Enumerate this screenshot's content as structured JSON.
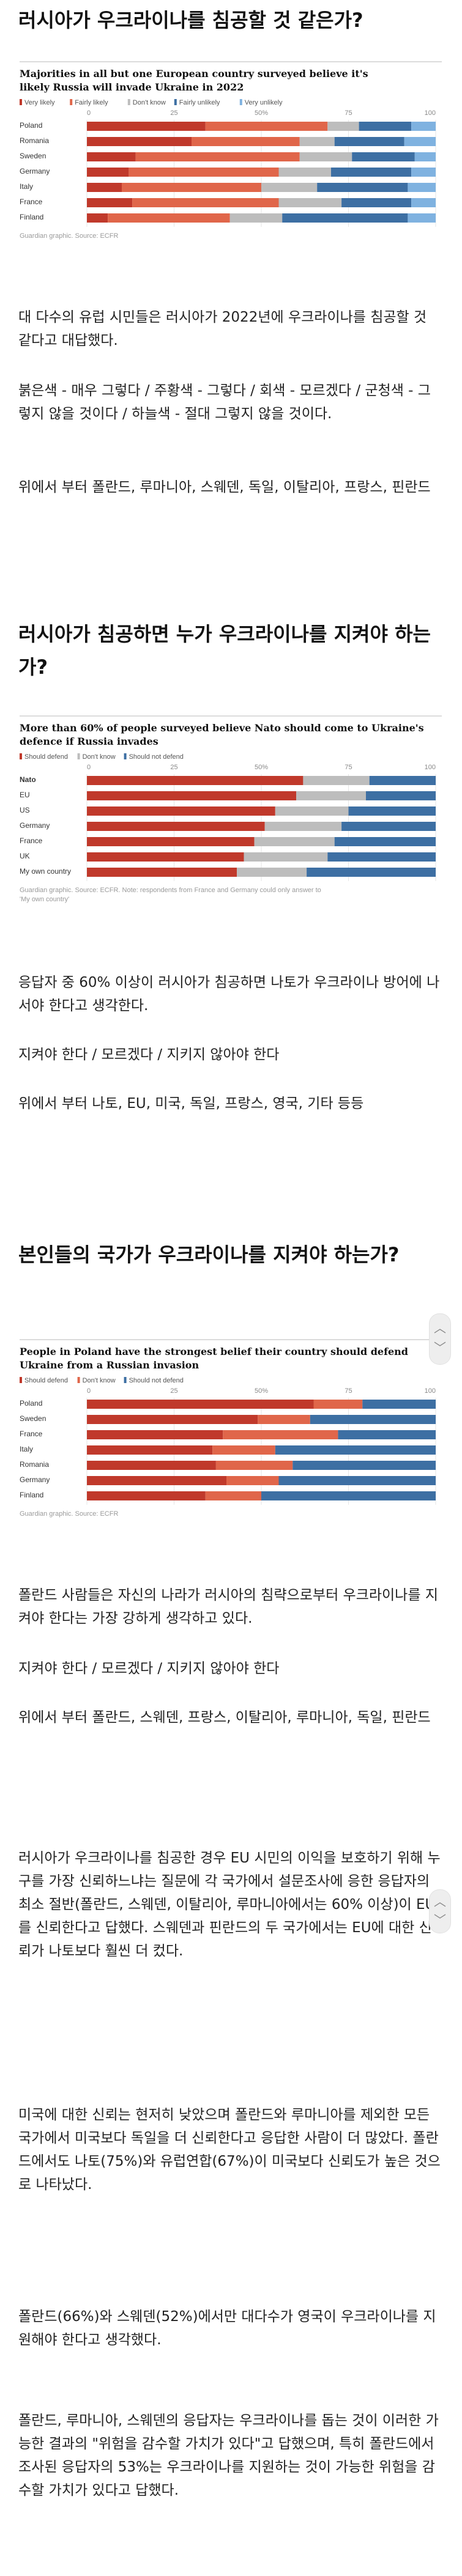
{
  "sections": [
    {
      "heading": "러시아가 우크라이나를 침공할 것 같은가?",
      "paragraphs": [
        "대 다수의 유럽 시민들은 러시아가 2022년에 우크라이나를 침공할 것 같다고 대답했다.",
        "붉은색 - 매우 그렇다 / 주황색 - 그렇다 / 회색 - 모르겠다 / 군청색 - 그렇지 않을 것이다 / 하늘색 - 절대 그렇지 않을 것이다.",
        "위에서 부터 폴란드, 루마니아, 스웨덴, 독일, 이탈리아, 프랑스, 핀란드"
      ]
    },
    {
      "heading": "러시아가 침공하면 누가 우크라이나를 지켜야 하는가?",
      "paragraphs": [
        "응답자 중 60% 이상이 러시아가 침공하면 나토가 우크라이나 방어에 나서야 한다고 생각한다.",
        "지켜야 한다 / 모르겠다 / 지키지 않아야 한다",
        "위에서 부터 나토, EU, 미국, 독일, 프랑스, 영국, 기타 등등"
      ]
    },
    {
      "heading": "본인들의 국가가 우크라이나를 지켜야 하는가?",
      "paragraphs": [
        "폴란드 사람들은 자신의 나라가 러시아의 침략으로부터 우크라이나를 지켜야 한다는 가장 강하게 생각하고 있다.",
        "지켜야 한다 / 모르겠다 / 지키지 않아야 한다",
        "위에서 부터 폴란드, 스웨덴, 프랑스, 이탈리아, 루마니아, 독일, 핀란드"
      ]
    }
  ],
  "closing_paragraphs": [
    "러시아가 우크라이나를 침공한 경우 EU 시민의 이익을 보호하기 위해 누구를 가장 신뢰하느냐는 질문에 각 국가에서 설문조사에 응한 응답자의 최소 절반(폴란드, 스웨덴, 이탈리아, 루마니아에서는 60% 이상)이 EU를 신뢰한다고 답했다. 스웨덴과 핀란드의 두 국가에서는 EU에 대한 신뢰가 나토보다 훨씬 더 컸다.",
    "미국에 대한 신뢰는 현저히 낮았으며 폴란드와 루마니아를 제외한 모든 국가에서 미국보다 독일을 더 신뢰한다고 응답한 사람이 더 많았다. 폴란드에서도 나토(75%)와 유럽연합(67%)이 미국보다 신뢰도가 높은 것으로 나타났다.",
    "폴란드(66%)와 스웨덴(52%)에서만 대다수가 영국이 우크라이나를 지원해야 한다고 생각했다.",
    "폴란드, 루마니아, 스웨덴의 응답자는 우크라이나를 돕는 것이 이러한 가능한 결과의 \"위험을 감수할 가치가 있다\"고 답했으며, 특히 폴란드에서 조사된 응답자의 53%는 우크라이나를 지원하는 것이 가능한 위험을 감수할 가치가 있다고 답했다."
  ],
  "scroll_control": {
    "up_icon": "chevron-up-icon",
    "down_icon": "chevron-down-icon"
  },
  "chart_data": [
    {
      "type": "bar",
      "stacked": true,
      "orientation": "horizontal",
      "title": "Majorities in all but one European country surveyed believe it's likely Russia will invade Ukraine in 2022",
      "xlim": [
        0,
        100
      ],
      "ticks": [
        "0",
        "25",
        "50%",
        "75",
        "100"
      ],
      "categories": [
        "Poland",
        "Romania",
        "Sweden",
        "Germany",
        "Italy",
        "France",
        "Finland"
      ],
      "series": [
        {
          "name": "Very likely",
          "color": "#c0392b",
          "values": [
            34,
            30,
            14,
            12,
            10,
            13,
            6
          ]
        },
        {
          "name": "Fairly likely",
          "color": "#e0664a",
          "values": [
            35,
            31,
            47,
            43,
            40,
            42,
            35
          ]
        },
        {
          "name": "Don't know",
          "color": "#bdbdbd",
          "values": [
            9,
            10,
            15,
            15,
            16,
            18,
            15
          ]
        },
        {
          "name": "Fairly unlikely",
          "color": "#3d6fa3",
          "values": [
            15,
            20,
            18,
            23,
            26,
            20,
            36
          ]
        },
        {
          "name": "Very unlikely",
          "color": "#7fb2e0",
          "values": [
            7,
            9,
            6,
            7,
            8,
            7,
            8
          ]
        }
      ],
      "source": "Guardian graphic. Source: ECFR"
    },
    {
      "type": "bar",
      "stacked": true,
      "orientation": "horizontal",
      "title": "More than 60% of people surveyed believe Nato should come to Ukraine's defence if Russia invades",
      "xlim": [
        0,
        100
      ],
      "ticks": [
        "0",
        "25",
        "50%",
        "75",
        "100"
      ],
      "categories": [
        "Nato",
        "EU",
        "US",
        "Germany",
        "France",
        "UK",
        "My own country"
      ],
      "series": [
        {
          "name": "Should defend",
          "color": "#c0392b",
          "values": [
            62,
            60,
            54,
            51,
            48,
            45,
            43
          ]
        },
        {
          "name": "Don't know",
          "color": "#bdbdbd",
          "values": [
            19,
            20,
            21,
            22,
            23,
            24,
            20
          ]
        },
        {
          "name": "Should not defend",
          "color": "#3d6fa3",
          "values": [
            19,
            20,
            25,
            27,
            29,
            31,
            37
          ]
        }
      ],
      "source": "Guardian graphic. Source: ECFR. Note: respondents from France and Germany could only answer to 'My own country'"
    },
    {
      "type": "bar",
      "stacked": true,
      "orientation": "horizontal",
      "title": "People in Poland have the strongest belief their country should defend Ukraine from a Russian invasion",
      "xlim": [
        0,
        100
      ],
      "ticks": [
        "0",
        "25",
        "50%",
        "75",
        "100"
      ],
      "categories": [
        "Poland",
        "Sweden",
        "France",
        "Italy",
        "Romania",
        "Germany",
        "Finland"
      ],
      "series": [
        {
          "name": "Should defend",
          "color": "#c0392b",
          "values": [
            65,
            49,
            39,
            36,
            37,
            40,
            34
          ]
        },
        {
          "name": "Don't know",
          "color": "#e0664a",
          "values": [
            14,
            15,
            33,
            18,
            22,
            15,
            16
          ]
        },
        {
          "name": "Should not defend",
          "color": "#3d6fa3",
          "values": [
            21,
            36,
            28,
            46,
            41,
            45,
            50
          ]
        }
      ],
      "source": "Guardian graphic. Source: ECFR"
    }
  ]
}
